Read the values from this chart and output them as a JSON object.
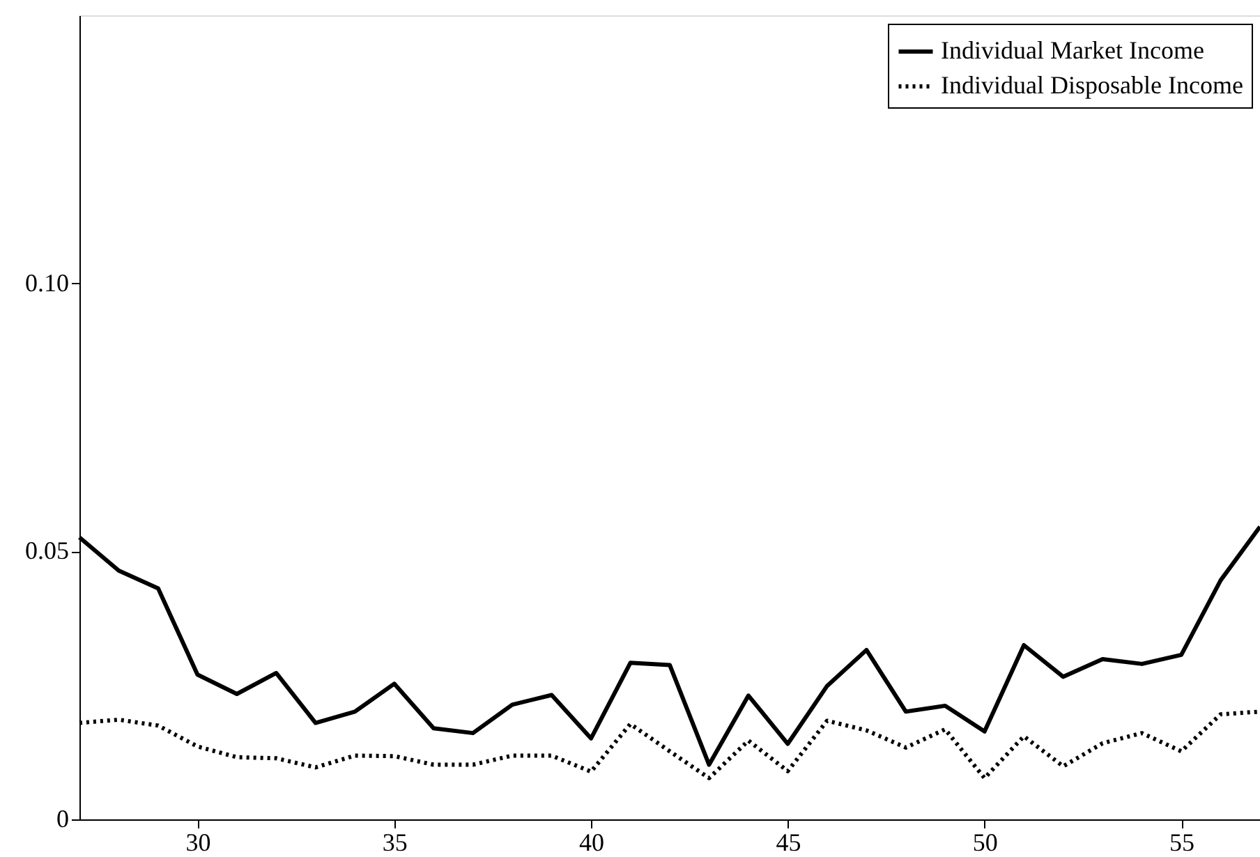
{
  "chart_data": {
    "type": "line",
    "x": [
      27,
      28,
      29,
      30,
      31,
      32,
      33,
      34,
      35,
      36,
      37,
      38,
      39,
      40,
      41,
      42,
      43,
      44,
      45,
      46,
      47,
      48,
      49,
      50,
      51,
      52,
      53,
      54,
      55,
      56,
      57
    ],
    "series": [
      {
        "name": "Individual Market Income",
        "color": "#000000",
        "line_style": "solid",
        "values": [
          0.0526,
          0.0464,
          0.0431,
          0.027,
          0.0234,
          0.0273,
          0.018,
          0.0201,
          0.0253,
          0.017,
          0.0161,
          0.0214,
          0.0232,
          0.0151,
          0.0292,
          0.0288,
          0.0102,
          0.0231,
          0.0141,
          0.0249,
          0.0316,
          0.0201,
          0.0212,
          0.0164,
          0.0325,
          0.0266,
          0.0299,
          0.029,
          0.0307,
          0.0446,
          0.0546
        ]
      },
      {
        "name": "Individual Disposable Income",
        "color": "#000000",
        "line_style": "dotted",
        "values": [
          0.018,
          0.0186,
          0.0175,
          0.0136,
          0.0116,
          0.0114,
          0.0097,
          0.0119,
          0.0118,
          0.0102,
          0.0102,
          0.0119,
          0.0119,
          0.0089,
          0.0178,
          0.0127,
          0.0077,
          0.0147,
          0.009,
          0.0184,
          0.0166,
          0.0134,
          0.0168,
          0.0077,
          0.0155,
          0.0099,
          0.0142,
          0.0161,
          0.0127,
          0.0196,
          0.0201
        ]
      }
    ],
    "xlim": [
      27,
      57
    ],
    "xticks": [
      30,
      35,
      40,
      45,
      50,
      55
    ],
    "ylim": [
      0,
      0.15
    ],
    "yticks": [
      0,
      0.05,
      {
        "value": 0.1,
        "label": "0.10"
      }
    ],
    "grid": false,
    "legend": "top right",
    "marker": "none"
  }
}
